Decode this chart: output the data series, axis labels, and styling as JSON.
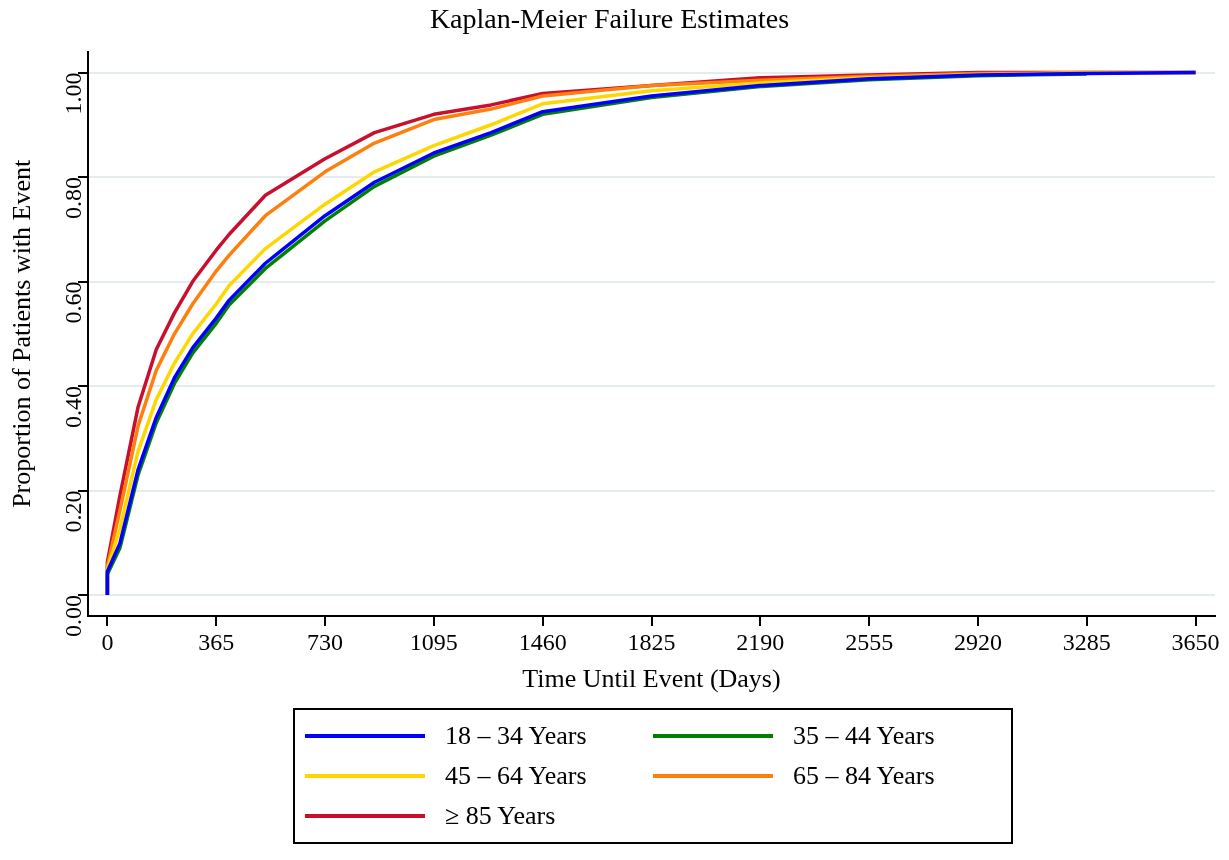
{
  "chart_data": {
    "type": "line",
    "title": "Kaplan-Meier Failure Estimates",
    "xlabel": "Time Until Event (Days)",
    "ylabel": "Proportion of Patients with Event",
    "x": [
      0,
      0,
      42,
      103,
      164,
      225,
      286,
      365,
      408,
      530,
      730,
      896,
      1095,
      1287,
      1460,
      1825,
      2190,
      2555,
      2920,
      3285,
      3650
    ],
    "series": [
      {
        "name": "18 – 34 Years",
        "color": "#0000ff",
        "values": [
          0,
          0.045,
          0.099,
          0.24,
          0.34,
          0.416,
          0.473,
          0.53,
          0.564,
          0.635,
          0.726,
          0.79,
          0.846,
          0.885,
          0.925,
          0.955,
          0.975,
          0.988,
          0.995,
          0.998,
          1.0
        ]
      },
      {
        "name": "35 – 44 Years",
        "color": "#008000",
        "values": [
          0,
          0.04,
          0.09,
          0.23,
          0.33,
          0.405,
          0.463,
          0.52,
          0.555,
          0.625,
          0.716,
          0.782,
          0.84,
          0.88,
          0.92,
          0.952,
          0.973,
          0.986,
          0.994,
          0.997,
          null
        ]
      },
      {
        "name": "45 – 64 Years",
        "color": "#ffd700",
        "values": [
          0,
          0.05,
          0.127,
          0.275,
          0.374,
          0.444,
          0.5,
          0.557,
          0.592,
          0.663,
          0.748,
          0.81,
          0.86,
          0.9,
          0.94,
          0.965,
          0.98,
          0.99,
          0.996,
          0.999,
          1.0
        ]
      },
      {
        "name": "65 – 84 Years",
        "color": "#ff7f0e",
        "values": [
          0,
          0.055,
          0.162,
          0.324,
          0.43,
          0.5,
          0.557,
          0.62,
          0.65,
          0.726,
          0.81,
          0.865,
          0.91,
          0.93,
          0.955,
          0.975,
          0.985,
          0.993,
          0.998,
          1.0,
          1.0
        ]
      },
      {
        "name": "≥ 85 Years",
        "color": "#c8102e",
        "values": [
          0,
          0.063,
          0.19,
          0.36,
          0.47,
          0.54,
          0.6,
          0.66,
          0.69,
          0.765,
          0.835,
          0.885,
          0.92,
          0.938,
          0.96,
          0.975,
          0.99,
          0.995,
          1.0,
          1.0,
          1.0
        ]
      }
    ],
    "xlim": [
      -65,
      3715
    ],
    "ylim": [
      -0.04,
      1.04
    ],
    "xticks": [
      0,
      365,
      730,
      1095,
      1460,
      1825,
      2190,
      2555,
      2920,
      3285,
      3650
    ],
    "yticks": [
      {
        "value": 0,
        "label": "0.00"
      },
      {
        "value": 0.2,
        "label": "0.20"
      },
      {
        "value": 0.4,
        "label": "0.40"
      },
      {
        "value": 0.6,
        "label": "0.60"
      },
      {
        "value": 0.8,
        "label": "0.80"
      },
      {
        "value": 1,
        "label": "1.00"
      }
    ],
    "grid": "y",
    "legend": "bottom",
    "marker": "none",
    "line_style": "solid"
  }
}
